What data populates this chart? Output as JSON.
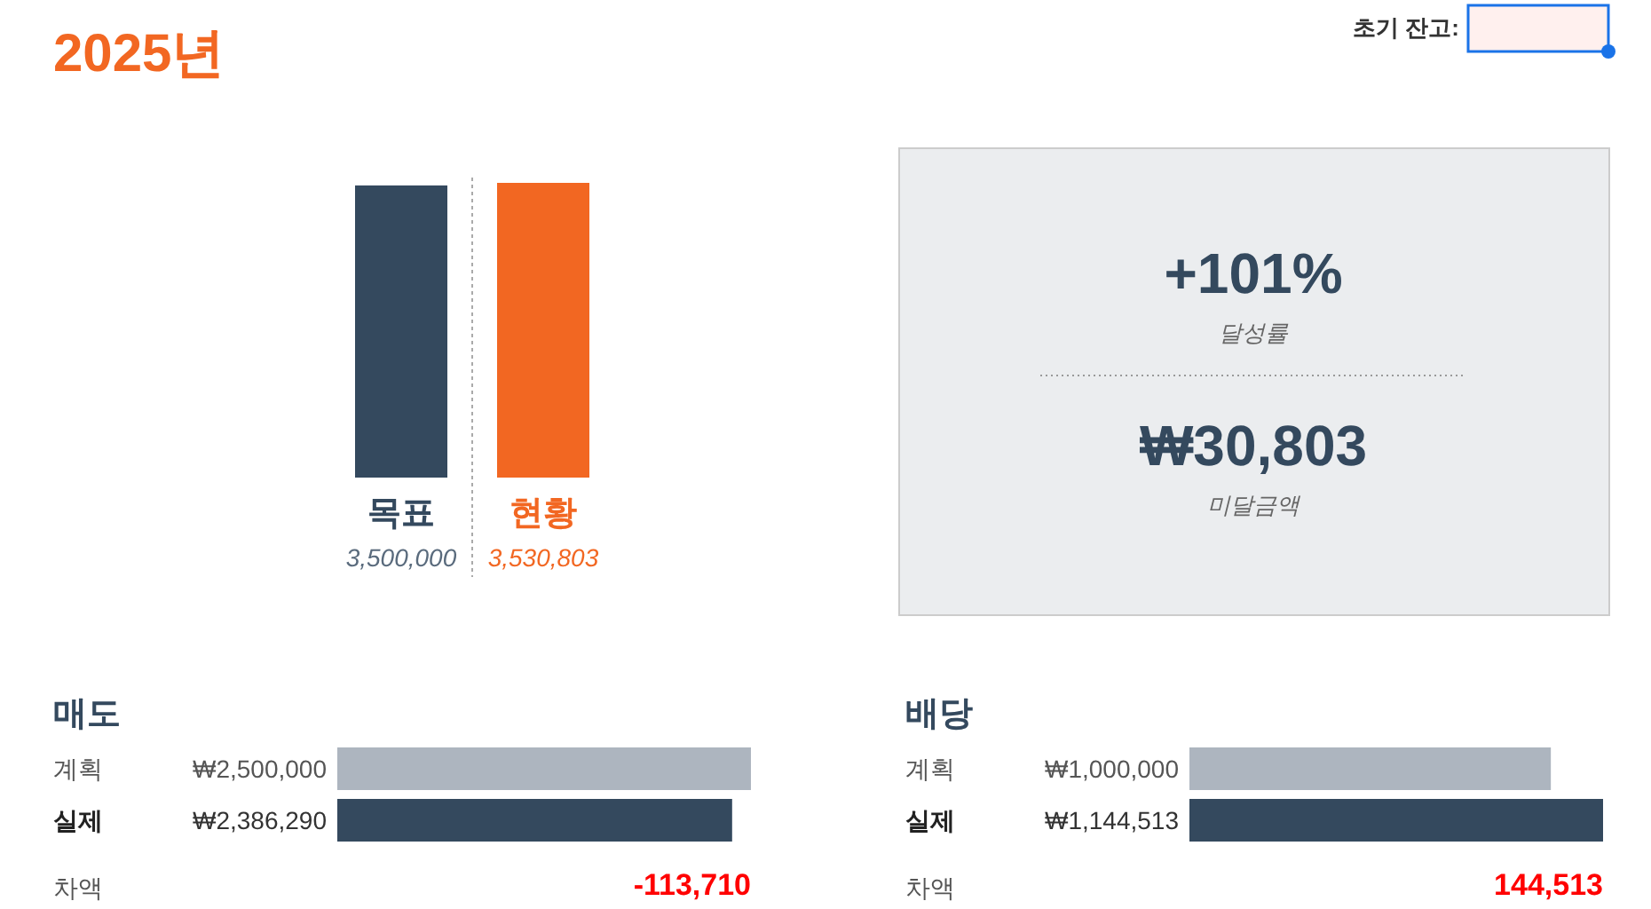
{
  "chart_data": [
    {
      "type": "bar",
      "title": "2025년",
      "annotations": [
        "초기 잔고:"
      ],
      "categories": [
        "목표",
        "현황"
      ],
      "values": [
        3500000,
        3530803
      ],
      "colors": [
        "#34495e",
        "#f26722"
      ],
      "value_labels": [
        "3,500,000",
        "3,530,803"
      ]
    },
    {
      "type": "other",
      "annotations": [
        "+101%",
        "달성률",
        "₩30,803",
        "미달금액"
      ]
    },
    {
      "type": "bar",
      "orientation": "horizontal",
      "title": "매도",
      "categories": [
        "계획",
        "실제"
      ],
      "values": [
        2500000,
        2386290
      ],
      "colors": [
        "#adb5bf",
        "#34495e"
      ],
      "value_labels": [
        "₩2,500,000",
        "₩2,386,290"
      ],
      "annotations": [
        "차액",
        "-113,710"
      ]
    },
    {
      "type": "bar",
      "orientation": "horizontal",
      "title": "배당",
      "categories": [
        "계획",
        "실제"
      ],
      "values": [
        1000000,
        1144513
      ],
      "colors": [
        "#adb5bf",
        "#34495e"
      ],
      "value_labels": [
        "₩1,000,000",
        "₩1,144,513"
      ],
      "annotations": [
        "차액",
        "144,513"
      ]
    }
  ]
}
